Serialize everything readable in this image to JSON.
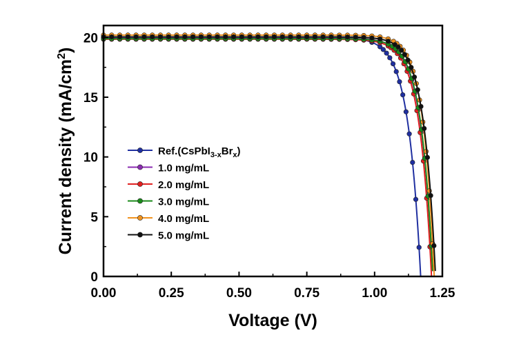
{
  "chart_data": {
    "type": "line",
    "title": "",
    "xlabel": "Voltage (V)",
    "ylabel": "Current density (mA/cm",
    "ylabel_superscript": "2",
    "ylabel_suffix": ")",
    "xlim": [
      0.0,
      1.25
    ],
    "ylim": [
      0,
      21
    ],
    "xticks": [
      "0.00",
      "0.25",
      "0.50",
      "0.75",
      "1.00",
      "1.25"
    ],
    "yticks": [
      "0",
      "5",
      "10",
      "15",
      "20"
    ],
    "grid": false,
    "legend_position": "center-left",
    "series": [
      {
        "name": "Ref.(CsPbI3-xBrx)",
        "legend_main": "Ref.(CsPbI",
        "legend_sub": "3-x",
        "legend_mid": "Br",
        "legend_sub2": "x",
        "legend_end": ")",
        "color": "#1f2fa0",
        "jsc": 20.0,
        "voc": 1.17,
        "n": 1.8
      },
      {
        "name": "1.0 mg/mL",
        "color": "#8a2bb0",
        "jsc": 19.95,
        "voc": 1.215,
        "n": 1.75
      },
      {
        "name": "2.0 mg/mL",
        "color": "#e02020",
        "jsc": 19.85,
        "voc": 1.21,
        "n": 1.75
      },
      {
        "name": "3.0 mg/mL",
        "color": "#1a8a1a",
        "jsc": 19.9,
        "voc": 1.215,
        "n": 1.7
      },
      {
        "name": "4.0 mg/mL",
        "color": "#f0921e",
        "jsc": 20.2,
        "voc": 1.22,
        "n": 1.6
      },
      {
        "name": "5.0 mg/mL",
        "color": "#111111",
        "jsc": 20.05,
        "voc": 1.225,
        "n": 1.7
      }
    ]
  }
}
